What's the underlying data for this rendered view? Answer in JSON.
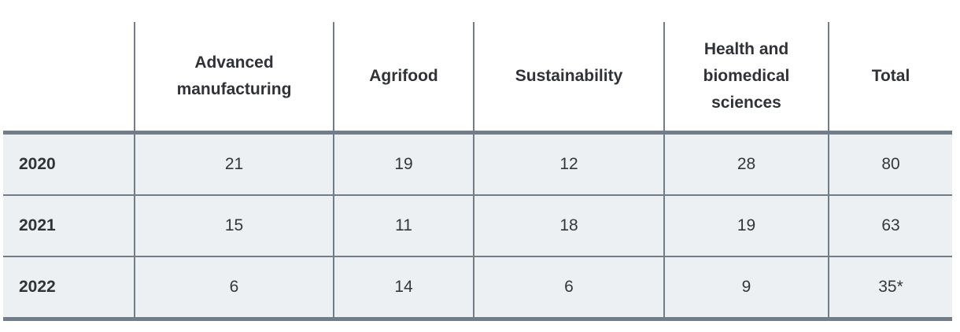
{
  "chart_data": {
    "type": "table",
    "title": "",
    "columns": [
      "",
      "Advanced manufacturing",
      "Agrifood",
      "Sustainability",
      "Health and biomedical sciences",
      "Total"
    ],
    "rows": [
      {
        "label": "2020",
        "values": [
          "21",
          "19",
          "12",
          "28",
          "80"
        ]
      },
      {
        "label": "2021",
        "values": [
          "15",
          "11",
          "18",
          "19",
          "63"
        ]
      },
      {
        "label": "2022",
        "values": [
          "6",
          "14",
          "6",
          "9",
          "35*"
        ]
      }
    ],
    "footnote_marker": "*",
    "layout": {
      "header_background": "#ffffff",
      "row_background": "#edf0f2",
      "border_color": "#717d89",
      "text_color": "#2f3337",
      "thick_rule_under_header": true,
      "thick_rule_at_bottom": true,
      "no_outer_side_borders": true
    }
  }
}
